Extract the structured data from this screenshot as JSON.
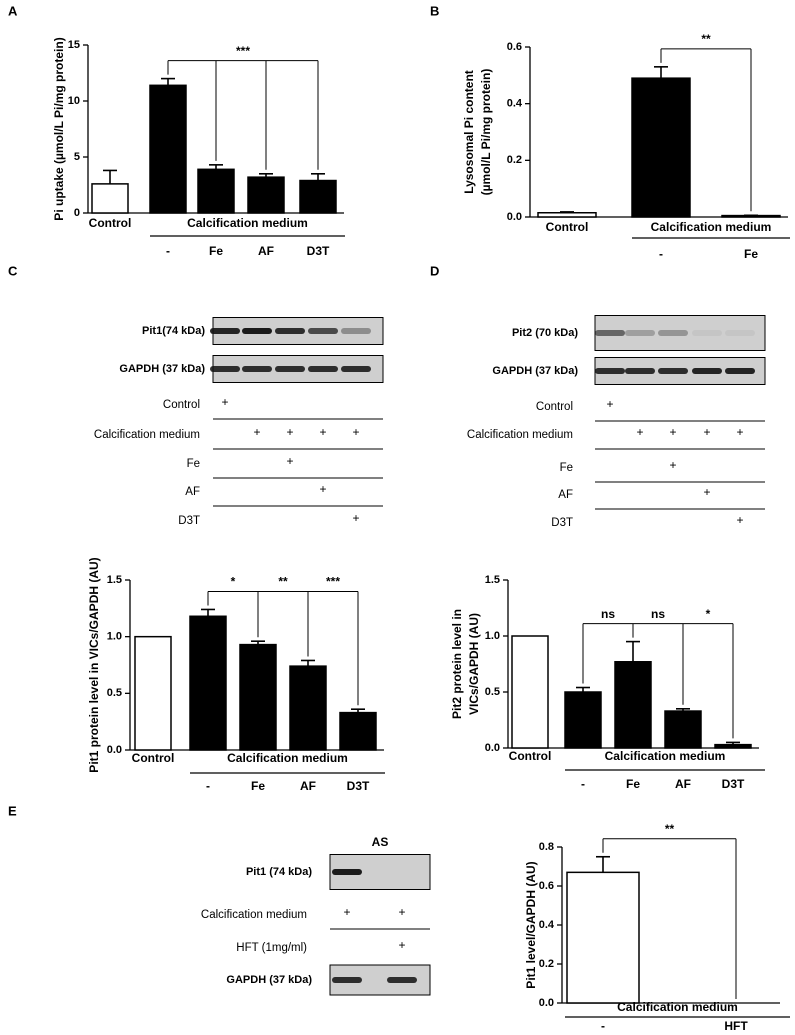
{
  "panels": [
    "A",
    "B",
    "C",
    "D",
    "E"
  ],
  "chart_data": [
    {
      "type": "bar",
      "ylabel": [
        "Pi uptake (µmol/L Pi/mg protein)"
      ],
      "control": {
        "label": "Control",
        "value": 2.6,
        "error": 1.2,
        "color": "#ffffff"
      },
      "group_label": "Calcification medium",
      "categories": [
        "-",
        "Fe",
        "AF",
        "D3T"
      ],
      "values": [
        11.4,
        3.9,
        3.2,
        2.9
      ],
      "errors": [
        0.6,
        0.4,
        0.3,
        0.6
      ],
      "color": "#000000",
      "ylim": [
        0,
        15
      ],
      "yticks": [
        0,
        5,
        10,
        15
      ],
      "significance": [
        "***"
      ]
    },
    {
      "type": "bar",
      "ylabel": [
        "Lysosomal Pi content",
        "(µmol/L Pi/mg protein)"
      ],
      "control": {
        "label": "Control",
        "value": 0.015,
        "error": 0.003,
        "color": "#ffffff"
      },
      "group_label": "Calcification medium",
      "categories": [
        "-",
        "Fe"
      ],
      "values": [
        0.49,
        0.005
      ],
      "errors": [
        0.04,
        0.001
      ],
      "color": "#000000",
      "ylim": [
        0,
        0.6
      ],
      "yticks": [
        {
          "value": 0,
          "label": "0.0"
        },
        0.2,
        0.4,
        0.6
      ],
      "significance": [
        "**"
      ]
    },
    {
      "type": "bar",
      "ylabel": [
        "Pit1 protein level in VICs/GAPDH (AU)"
      ],
      "control": {
        "label": "Control",
        "value": 1.0,
        "error": 0,
        "color": "#ffffff"
      },
      "group_label": "Calcification medium",
      "categories": [
        "-",
        "Fe",
        "AF",
        "D3T"
      ],
      "values": [
        1.18,
        0.93,
        0.74,
        0.33
      ],
      "errors": [
        0.06,
        0.03,
        0.05,
        0.03
      ],
      "color": "#000000",
      "ylim": [
        0,
        1.5
      ],
      "yticks": [
        {
          "value": 0,
          "label": "0.0"
        },
        0.5,
        {
          "value": 1,
          "label": "1.0"
        },
        1.5
      ],
      "significance": [
        "*",
        "**",
        "***"
      ]
    },
    {
      "type": "bar",
      "ylabel": [
        "Pit2 protein level in",
        "VICs/GAPDH (AU)"
      ],
      "control": {
        "label": "Control",
        "value": 1.0,
        "error": 0,
        "color": "#ffffff"
      },
      "group_label": "Calcification medium",
      "categories": [
        "-",
        "Fe",
        "AF",
        "D3T"
      ],
      "values": [
        0.5,
        0.77,
        0.33,
        0.03
      ],
      "errors": [
        0.04,
        0.18,
        0.02,
        0.02
      ],
      "color": "#000000",
      "ylim": [
        0,
        1.5
      ],
      "yticks": [
        {
          "value": 0,
          "label": "0.0"
        },
        0.5,
        {
          "value": 1,
          "label": "1.0"
        },
        1.5
      ],
      "significance": [
        "ns",
        "ns",
        "*"
      ]
    },
    {
      "type": "bar",
      "ylabel": [
        "Pit1 level/GAPDH (AU)"
      ],
      "group_label": "Calcification medium",
      "categories": [
        "-",
        "HFT"
      ],
      "values": [
        0.67,
        0
      ],
      "errors": [
        0.08,
        0
      ],
      "color": "#ffffff",
      "ylim": [
        0,
        0.8
      ],
      "yticks": [
        {
          "value": 0,
          "label": "0.0"
        },
        0.2,
        0.4,
        0.6,
        0.8
      ],
      "significance": [
        "**"
      ]
    }
  ],
  "blots": [
    {
      "rows": [
        {
          "band": "Pit1(74 kDa)"
        },
        {
          "band": "GAPDH (37 kDa)"
        },
        {
          "label": "Control",
          "marks": [
            "+",
            null,
            null,
            null,
            null
          ]
        },
        {
          "label": "Calcification medium",
          "marks": [
            null,
            "+",
            "+",
            "+",
            "+"
          ]
        },
        {
          "label": "Fe",
          "marks": [
            null,
            null,
            "+",
            null,
            null
          ]
        },
        {
          "label": "AF",
          "marks": [
            null,
            null,
            null,
            "+",
            null
          ]
        },
        {
          "label": "D3T",
          "marks": [
            null,
            null,
            null,
            null,
            "+"
          ]
        }
      ]
    },
    {
      "rows": [
        {
          "band": "Pit2 (70 kDa)"
        },
        {
          "band": "GAPDH (37 kDa)"
        },
        {
          "label": "Control",
          "marks": [
            "+",
            null,
            null,
            null,
            null
          ]
        },
        {
          "label": "Calcification medium",
          "marks": [
            null,
            "+",
            "+",
            "+",
            "+"
          ]
        },
        {
          "label": "Fe",
          "marks": [
            null,
            null,
            "+",
            null,
            null
          ]
        },
        {
          "label": "AF",
          "marks": [
            null,
            null,
            null,
            "+",
            null
          ]
        },
        {
          "label": "D3T",
          "marks": [
            null,
            null,
            null,
            null,
            "+"
          ]
        }
      ]
    },
    {
      "title": "AS",
      "rows": [
        {
          "band": "Pit1 (74 kDa)"
        },
        {
          "label": "Calcification medium",
          "marks": [
            "+",
            "+"
          ]
        },
        {
          "label": "HFT (1mg/ml)",
          "marks": [
            null,
            "+"
          ]
        },
        {
          "band": "GAPDH (37 kDa)"
        }
      ]
    }
  ]
}
